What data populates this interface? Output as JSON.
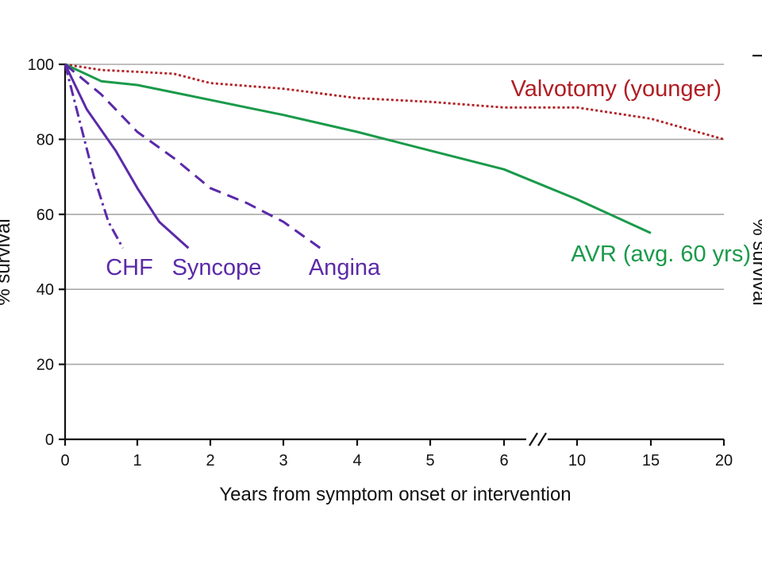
{
  "chart_data": {
    "type": "line",
    "ylabel": "% survival",
    "xlabel": "Years from symptom onset or intervention",
    "ylim": [
      0,
      100
    ],
    "y_ticks": [
      "0",
      "20",
      "40",
      "60",
      "80",
      "100"
    ],
    "x_ticks": [
      "0",
      "1",
      "2",
      "3",
      "4",
      "5",
      "6",
      "10",
      "15",
      "20"
    ],
    "x_axis_break": "between 6 and 10",
    "grid": "horizontal",
    "right_axis_label": "% survival",
    "series": [
      {
        "name": "Valvotomy (younger)",
        "color": "#b01e23",
        "style": "dotted",
        "x": [
          0,
          0.5,
          1,
          1.5,
          2,
          3,
          4,
          5,
          6,
          10,
          15,
          20
        ],
        "y": [
          100,
          98.5,
          98,
          97.5,
          95,
          93.5,
          91,
          90,
          88.5,
          88.5,
          85.5,
          80
        ]
      },
      {
        "name": "AVR (avg. 60 yrs)",
        "color": "#1a9a4a",
        "style": "solid",
        "x": [
          0,
          0.5,
          1,
          1.5,
          2,
          2.5,
          3,
          4,
          5,
          6,
          10,
          15
        ],
        "y": [
          100,
          95.5,
          94.5,
          92.5,
          90.5,
          88.5,
          86.5,
          82,
          77,
          72,
          64,
          55
        ]
      },
      {
        "name": "Angina",
        "color": "#5b2aa8",
        "style": "dashed",
        "x": [
          0,
          0.5,
          1,
          1.5,
          2,
          2.5,
          3,
          3.5
        ],
        "y": [
          100,
          92,
          82,
          75,
          67,
          63,
          58,
          51
        ]
      },
      {
        "name": "Syncope",
        "color": "#5b2aa8",
        "style": "solid",
        "x": [
          0,
          0.3,
          0.7,
          1,
          1.3,
          1.7
        ],
        "y": [
          100,
          88,
          77,
          67,
          58,
          51
        ]
      },
      {
        "name": "CHF",
        "color": "#5b2aa8",
        "style": "dashdot",
        "x": [
          0,
          0.2,
          0.4,
          0.6,
          0.8
        ],
        "y": [
          100,
          85,
          70,
          58,
          51
        ]
      }
    ]
  }
}
